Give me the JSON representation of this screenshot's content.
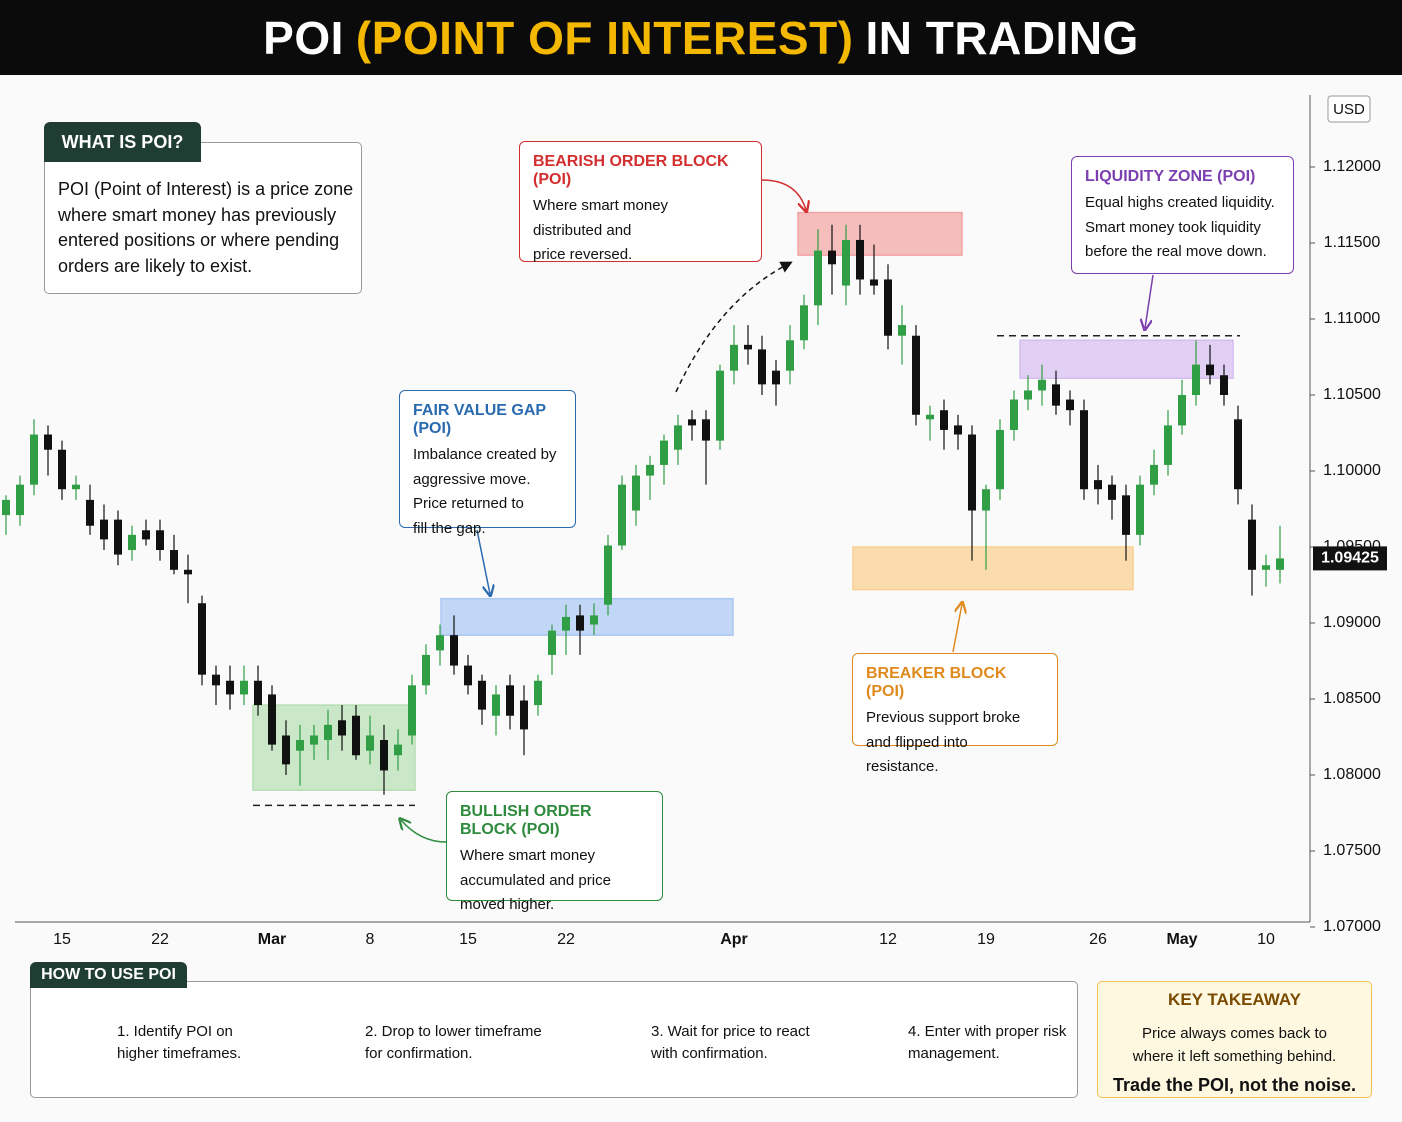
{
  "header": {
    "title": [
      "POI",
      "(POINT OF INTEREST)",
      "IN TRADING"
    ]
  },
  "intro": {
    "title": "WHAT IS POI?",
    "text": [
      "POI (Point of Interest) is a price zone",
      "where smart money has previously",
      "entered positions or where pending",
      "orders are likely to exist."
    ]
  },
  "chart_data": {
    "type": "candlestick",
    "currency": "USD",
    "categories": [
      null,
      null,
      null,
      null,
      "15",
      null,
      null,
      null,
      null,
      null,
      null,
      "22",
      null,
      null,
      null,
      null,
      null,
      null,
      null,
      "Mar",
      null,
      null,
      null,
      null,
      null,
      null,
      "8",
      null,
      null,
      null,
      null,
      null,
      null,
      "15",
      null,
      null,
      null,
      null,
      null,
      null,
      "22",
      null,
      null,
      null,
      null,
      null,
      null,
      null,
      null,
      null,
      null,
      null,
      "Apr",
      null,
      null,
      null,
      null,
      null,
      null,
      null,
      null,
      null,
      null,
      "12",
      null,
      null,
      null,
      null,
      null,
      null,
      "19",
      null,
      null,
      null,
      null,
      null,
      null,
      null,
      "26",
      null,
      null,
      null,
      null,
      null,
      "May",
      null,
      null,
      null,
      null,
      null,
      "10",
      null
    ],
    "open": [
      1.0971,
      1.0971,
      1.0991,
      1.1024,
      1.1014,
      1.0988,
      1.0981,
      1.0968,
      1.0968,
      1.0948,
      1.0961,
      1.0961,
      1.0948,
      1.0935,
      1.0913,
      1.0866,
      1.0862,
      1.0853,
      1.0862,
      1.0853,
      1.0826,
      1.0816,
      1.082,
      1.0823,
      1.0836,
      1.0839,
      1.0816,
      1.0823,
      1.0813,
      1.0826,
      1.0859,
      1.0882,
      1.0892,
      1.0872,
      1.0862,
      1.0839,
      1.0859,
      1.0849,
      1.0846,
      1.0879,
      1.0895,
      1.0905,
      1.0899,
      1.0912,
      1.0951,
      1.0974,
      1.0997,
      1.1004,
      1.1014,
      1.1034,
      1.1034,
      1.102,
      1.1066,
      1.1083,
      1.108,
      1.1066,
      1.1066,
      1.1086,
      1.1109,
      1.1145,
      1.1122,
      1.1152,
      1.1126,
      1.1126,
      1.1089,
      1.1089,
      1.1034,
      1.104,
      1.103,
      1.1024,
      1.0974,
      1.0988,
      1.1027,
      1.1047,
      1.1053,
      1.1057,
      1.1047,
      1.104,
      1.0994,
      1.0991,
      1.0984,
      1.0958,
      1.0991,
      1.1004,
      1.103,
      1.105,
      1.107,
      1.1063,
      1.1034,
      1.0968,
      1.0935,
      1.0935
    ],
    "high": [
      1.0984,
      1.0997,
      1.1034,
      1.103,
      1.102,
      1.0997,
      1.0991,
      1.0978,
      1.0974,
      1.0964,
      1.0968,
      1.0968,
      1.0958,
      1.0945,
      1.0918,
      1.0872,
      1.0872,
      1.0872,
      1.0872,
      1.0859,
      1.0836,
      1.0833,
      1.0833,
      1.0843,
      1.0846,
      1.0846,
      1.0839,
      1.0833,
      1.083,
      1.0866,
      1.0886,
      1.0899,
      1.0905,
      1.0879,
      1.0866,
      1.0859,
      1.0866,
      1.0859,
      1.0866,
      1.0899,
      1.0912,
      1.0912,
      1.0913,
      1.0958,
      1.0997,
      1.1004,
      1.101,
      1.1024,
      1.1037,
      1.104,
      1.104,
      1.107,
      1.1096,
      1.1096,
      1.1089,
      1.1073,
      1.1096,
      1.1116,
      1.1159,
      1.1162,
      1.1162,
      1.1162,
      1.1149,
      1.1136,
      1.1109,
      1.1096,
      1.1043,
      1.1047,
      1.1037,
      1.103,
      1.0991,
      1.1034,
      1.1053,
      1.1063,
      1.107,
      1.1066,
      1.1053,
      1.1047,
      1.1004,
      1.0997,
      1.0991,
      1.0997,
      1.1014,
      1.104,
      1.106,
      1.1086,
      1.1083,
      1.107,
      1.1043,
      1.0978,
      1.0945,
      1.0964
    ],
    "low": [
      1.0958,
      1.0964,
      1.0984,
      1.0997,
      1.0981,
      1.0981,
      1.0958,
      1.0948,
      1.0938,
      1.0941,
      1.0951,
      1.0941,
      1.0932,
      1.0913,
      1.0859,
      1.0846,
      1.0843,
      1.0846,
      1.0839,
      1.0816,
      1.08,
      1.0793,
      1.081,
      1.081,
      1.0816,
      1.081,
      1.0807,
      1.0787,
      1.0803,
      1.082,
      1.0853,
      1.0872,
      1.0866,
      1.0853,
      1.0833,
      1.0826,
      1.083,
      1.0813,
      1.0839,
      1.0866,
      1.0879,
      1.0879,
      1.0892,
      1.0905,
      1.0948,
      1.0964,
      1.0981,
      1.0991,
      1.1004,
      1.102,
      1.0991,
      1.1014,
      1.1057,
      1.107,
      1.105,
      1.1043,
      1.1057,
      1.108,
      1.1096,
      1.1116,
      1.1109,
      1.1116,
      1.1116,
      1.108,
      1.107,
      1.103,
      1.102,
      1.1014,
      1.1014,
      1.0941,
      1.0935,
      1.0981,
      1.102,
      1.104,
      1.1043,
      1.1037,
      1.103,
      1.0981,
      1.0978,
      1.0968,
      1.0941,
      1.0951,
      1.0984,
      1.0997,
      1.1024,
      1.1043,
      1.1057,
      1.1043,
      1.0978,
      1.0918,
      1.0924,
      1.0926
    ],
    "close": [
      1.0981,
      1.0991,
      1.1024,
      1.1014,
      1.0988,
      1.0991,
      1.0964,
      1.0955,
      1.0945,
      1.0958,
      1.0955,
      1.0948,
      1.0935,
      1.0932,
      1.0866,
      1.0859,
      1.0853,
      1.0862,
      1.0846,
      1.082,
      1.0807,
      1.0823,
      1.0826,
      1.0833,
      1.0826,
      1.0813,
      1.0826,
      1.0803,
      1.082,
      1.0859,
      1.0879,
      1.0892,
      1.0872,
      1.0859,
      1.0843,
      1.0853,
      1.0839,
      1.083,
      1.0862,
      1.0895,
      1.0904,
      1.0895,
      1.0905,
      1.0951,
      1.0991,
      1.0997,
      1.1004,
      1.102,
      1.103,
      1.103,
      1.102,
      1.1066,
      1.1083,
      1.108,
      1.1057,
      1.1057,
      1.1086,
      1.1109,
      1.1145,
      1.1136,
      1.1152,
      1.1126,
      1.1122,
      1.1089,
      1.1096,
      1.1037,
      1.1037,
      1.1027,
      1.1024,
      1.0974,
      1.0988,
      1.1027,
      1.1047,
      1.1053,
      1.106,
      1.1043,
      1.104,
      1.0988,
      1.0988,
      1.0981,
      1.0958,
      1.0991,
      1.1004,
      1.103,
      1.105,
      1.107,
      1.1063,
      1.105,
      1.0988,
      1.0935,
      1.0938,
      1.09425
    ],
    "up_color": "#2f9e44",
    "down_color": "#111111",
    "last_price": 1.09425,
    "ylim": [
      1.07,
      1.125
    ],
    "yticks": [
      {
        "value": 1.07,
        "label": "1.07000"
      },
      {
        "value": 1.075,
        "label": "1.07500"
      },
      {
        "value": 1.08,
        "label": "1.08000"
      },
      {
        "value": 1.085,
        "label": "1.08500"
      },
      {
        "value": 1.09,
        "label": "1.09000"
      },
      {
        "value": 1.095,
        "label": "1.09500"
      },
      {
        "value": 1.1,
        "label": "1.10000"
      },
      {
        "value": 1.105,
        "label": "1.10500"
      },
      {
        "value": 1.11,
        "label": "1.11000"
      },
      {
        "value": 1.115,
        "label": "1.11500"
      },
      {
        "value": 1.12,
        "label": "1.12000"
      }
    ],
    "zones": [
      {
        "title": "BEARISH ORDER BLOCK (POI)",
        "text": [
          "Where smart money",
          "distributed and",
          "price reversed."
        ],
        "range": [
          1.1142,
          1.117
        ],
        "fill": "#f4a3a3",
        "accent": "#d32f2f"
      },
      {
        "title": "FAIR VALUE GAP (POI)",
        "text": [
          "Imbalance created by",
          "aggressive move.",
          "Price returned to",
          "fill the gap."
        ],
        "range": [
          1.0892,
          1.0916
        ],
        "fill": "#a9c8f2",
        "accent": "#2a6bb0"
      },
      {
        "title": "LIQUIDITY ZONE (POI)",
        "text": [
          "Equal highs created liquidity.",
          "Smart money took liquidity",
          "before the real move down."
        ],
        "range": [
          1.1061,
          1.1086
        ],
        "level": 1.1089,
        "fill": "#d6bdf0",
        "accent": "#7b3fb0"
      },
      {
        "title": "BREAKER BLOCK (POI)",
        "text": [
          "Previous support broke",
          "and flipped into resistance."
        ],
        "range": [
          1.0922,
          1.095
        ],
        "fill": "#f9cf8f",
        "accent": "#e08a1e"
      },
      {
        "title": "BULLISH ORDER BLOCK (POI)",
        "text": [
          "Where smart money",
          "accumulated and price",
          "moved higher."
        ],
        "range": [
          1.079,
          1.0846
        ],
        "level": 1.078,
        "fill": "#b5deb0",
        "accent": "#2e8b3e"
      }
    ]
  },
  "how_to": {
    "title": "HOW TO USE POI",
    "steps": [
      [
        "1. Identify POI on",
        "higher timeframes."
      ],
      [
        "2. Drop to lower timeframe",
        "for confirmation."
      ],
      [
        "3. Wait for price to react",
        "with confirmation."
      ],
      [
        "4. Enter with proper risk",
        "management."
      ]
    ]
  },
  "takeaway": {
    "title": "KEY TAKEAWAY",
    "text": [
      "Price always comes back to",
      "where it left something behind."
    ],
    "emphasis": "Trade the POI, not the noise."
  }
}
